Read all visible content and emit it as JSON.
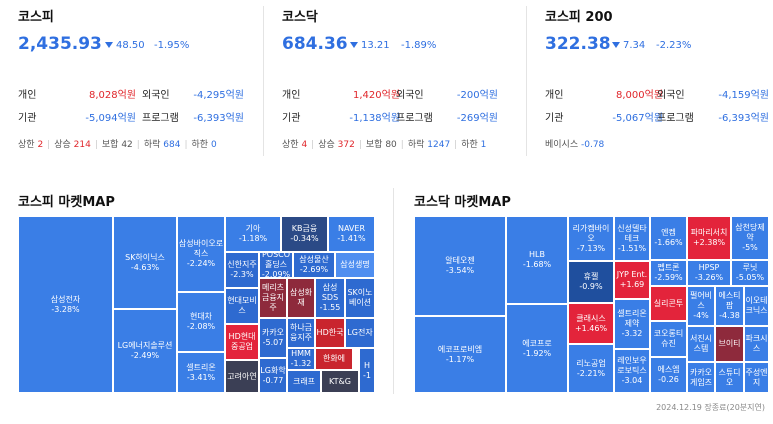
{
  "indices": [
    {
      "name": "코스피",
      "value": "2,435.93",
      "change": "48.50",
      "pct": "-1.95%",
      "row1": {
        "l1": "개인",
        "v1": "8,028억원",
        "l2": "외국인",
        "v2": "-4,295억원"
      },
      "row2": {
        "l1": "기관",
        "v1": "-5,094억원",
        "l2": "프로그램",
        "v2": "-6,393억원"
      },
      "counts": {
        "up_limit_l": "상한",
        "up_limit": "2",
        "up_l": "상승",
        "up": "214",
        "flat_l": "보합",
        "flat": "42",
        "down_l": "하락",
        "down": "684",
        "down_limit_l": "하한",
        "down_limit": "0"
      }
    },
    {
      "name": "코스닥",
      "value": "684.36",
      "change": "13.21",
      "pct": "-1.89%",
      "row1": {
        "l1": "개인",
        "v1": "1,420억원",
        "l2": "외국인",
        "v2": "-200억원"
      },
      "row2": {
        "l1": "기관",
        "v1": "-1,138억원",
        "l2": "프로그램",
        "v2": "-269억원"
      },
      "counts": {
        "up_limit_l": "상한",
        "up_limit": "4",
        "up_l": "상승",
        "up": "372",
        "flat_l": "보합",
        "flat": "80",
        "down_l": "하락",
        "down": "1247",
        "down_limit_l": "하한",
        "down_limit": "1"
      }
    },
    {
      "name": "코스피 200",
      "value": "322.38",
      "change": "7.34",
      "pct": "-2.23%",
      "row1": {
        "l1": "개인",
        "v1": "8,000억원",
        "l2": "외국인",
        "v2": "-4,159억원"
      },
      "row2": {
        "l1": "기관",
        "v1": "-5,067억원",
        "l2": "프로그램",
        "v2": "-6,393억원"
      },
      "basis_l": "베이시스",
      "basis": "-0.78"
    }
  ],
  "maps": {
    "kospi_title": "코스피 마켓MAP",
    "kosdaq_title": "코스닥 마켓MAP",
    "kospi": [
      {
        "n": "삼성전자",
        "v": "-3.28%"
      },
      {
        "n": "SK하이닉스",
        "v": "-4.63%"
      },
      {
        "n": "LG에너지솔루션",
        "v": "-2.49%"
      },
      {
        "n": "삼성바이오로직스",
        "v": "-2.24%"
      },
      {
        "n": "현대차",
        "v": "-2.08%"
      },
      {
        "n": "셀트리온",
        "v": "-3.41%"
      },
      {
        "n": "기아",
        "v": "-1.18%"
      },
      {
        "n": "KB금융",
        "v": "-0.34%"
      },
      {
        "n": "NAVER",
        "v": "-1.41%"
      },
      {
        "n": "신한지주",
        "v": "-2.3%"
      },
      {
        "n": "POSCO홀딩스",
        "v": "-2.09%"
      },
      {
        "n": "삼성물산",
        "v": "-2.69%"
      },
      {
        "n": "삼성생명",
        "v": ""
      },
      {
        "n": "현대모비스",
        "v": ""
      },
      {
        "n": "메리츠금융지주",
        "v": ""
      },
      {
        "n": "삼성화재",
        "v": ""
      },
      {
        "n": "삼성SDS",
        "v": "-1.55"
      },
      {
        "n": "SK이노베이션",
        "v": ""
      },
      {
        "n": "HD현대중공업",
        "v": ""
      },
      {
        "n": "카카오",
        "v": "-5.07"
      },
      {
        "n": "하나금융지주",
        "v": ""
      },
      {
        "n": "HD한국",
        "v": ""
      },
      {
        "n": "LG전자",
        "v": ""
      },
      {
        "n": "HMM",
        "v": "-1.32"
      },
      {
        "n": "한화에",
        "v": ""
      },
      {
        "n": "고려아연",
        "v": ""
      },
      {
        "n": "LG화학",
        "v": "-0.77"
      },
      {
        "n": "크래프",
        "v": ""
      },
      {
        "n": "KT&G",
        "v": ""
      },
      {
        "n": "H",
        "v": "-1"
      }
    ],
    "kosdaq": [
      {
        "n": "알테오젠",
        "v": "-3.54%"
      },
      {
        "n": "에코프로비엠",
        "v": "-1.17%"
      },
      {
        "n": "HLB",
        "v": "-1.68%"
      },
      {
        "n": "에코프로",
        "v": "-1.92%"
      },
      {
        "n": "리가켐바이오",
        "v": "-7.13%"
      },
      {
        "n": "휴젤",
        "v": "-0.9%"
      },
      {
        "n": "클래시스",
        "v": "+1.46%"
      },
      {
        "n": "리노공업",
        "v": "-2.21%"
      },
      {
        "n": "신성델타테크",
        "v": "-1.51%"
      },
      {
        "n": "JYP Ent.",
        "v": "+1.69"
      },
      {
        "n": "셀트리온제약",
        "v": "-3.32"
      },
      {
        "n": "레인보우로보틱스",
        "v": "-3.04"
      },
      {
        "n": "엔켐",
        "v": "-1.66%"
      },
      {
        "n": "펩트론",
        "v": "-2.59%"
      },
      {
        "n": "실리콘투",
        "v": ""
      },
      {
        "n": "코오롱티슈진",
        "v": ""
      },
      {
        "n": "에스엠",
        "v": "-0.26"
      },
      {
        "n": "파마리서치",
        "v": "+2.38%"
      },
      {
        "n": "HPSP",
        "v": "-3.26%"
      },
      {
        "n": "펄어비스",
        "v": "-4%"
      },
      {
        "n": "서진시스템",
        "v": ""
      },
      {
        "n": "카카오게임즈",
        "v": ""
      },
      {
        "n": "에스티팜",
        "v": "-4.38"
      },
      {
        "n": "브이티",
        "v": ""
      },
      {
        "n": "스튜디오",
        "v": ""
      },
      {
        "n": "삼천당제약",
        "v": "-5%"
      },
      {
        "n": "루닛",
        "v": "-5.05%"
      },
      {
        "n": "이오테크닉스",
        "v": ""
      },
      {
        "n": "파크시스",
        "v": ""
      },
      {
        "n": "주성엔지",
        "v": ""
      }
    ]
  },
  "footer": "2024.12.19 장종료(20분지연)"
}
